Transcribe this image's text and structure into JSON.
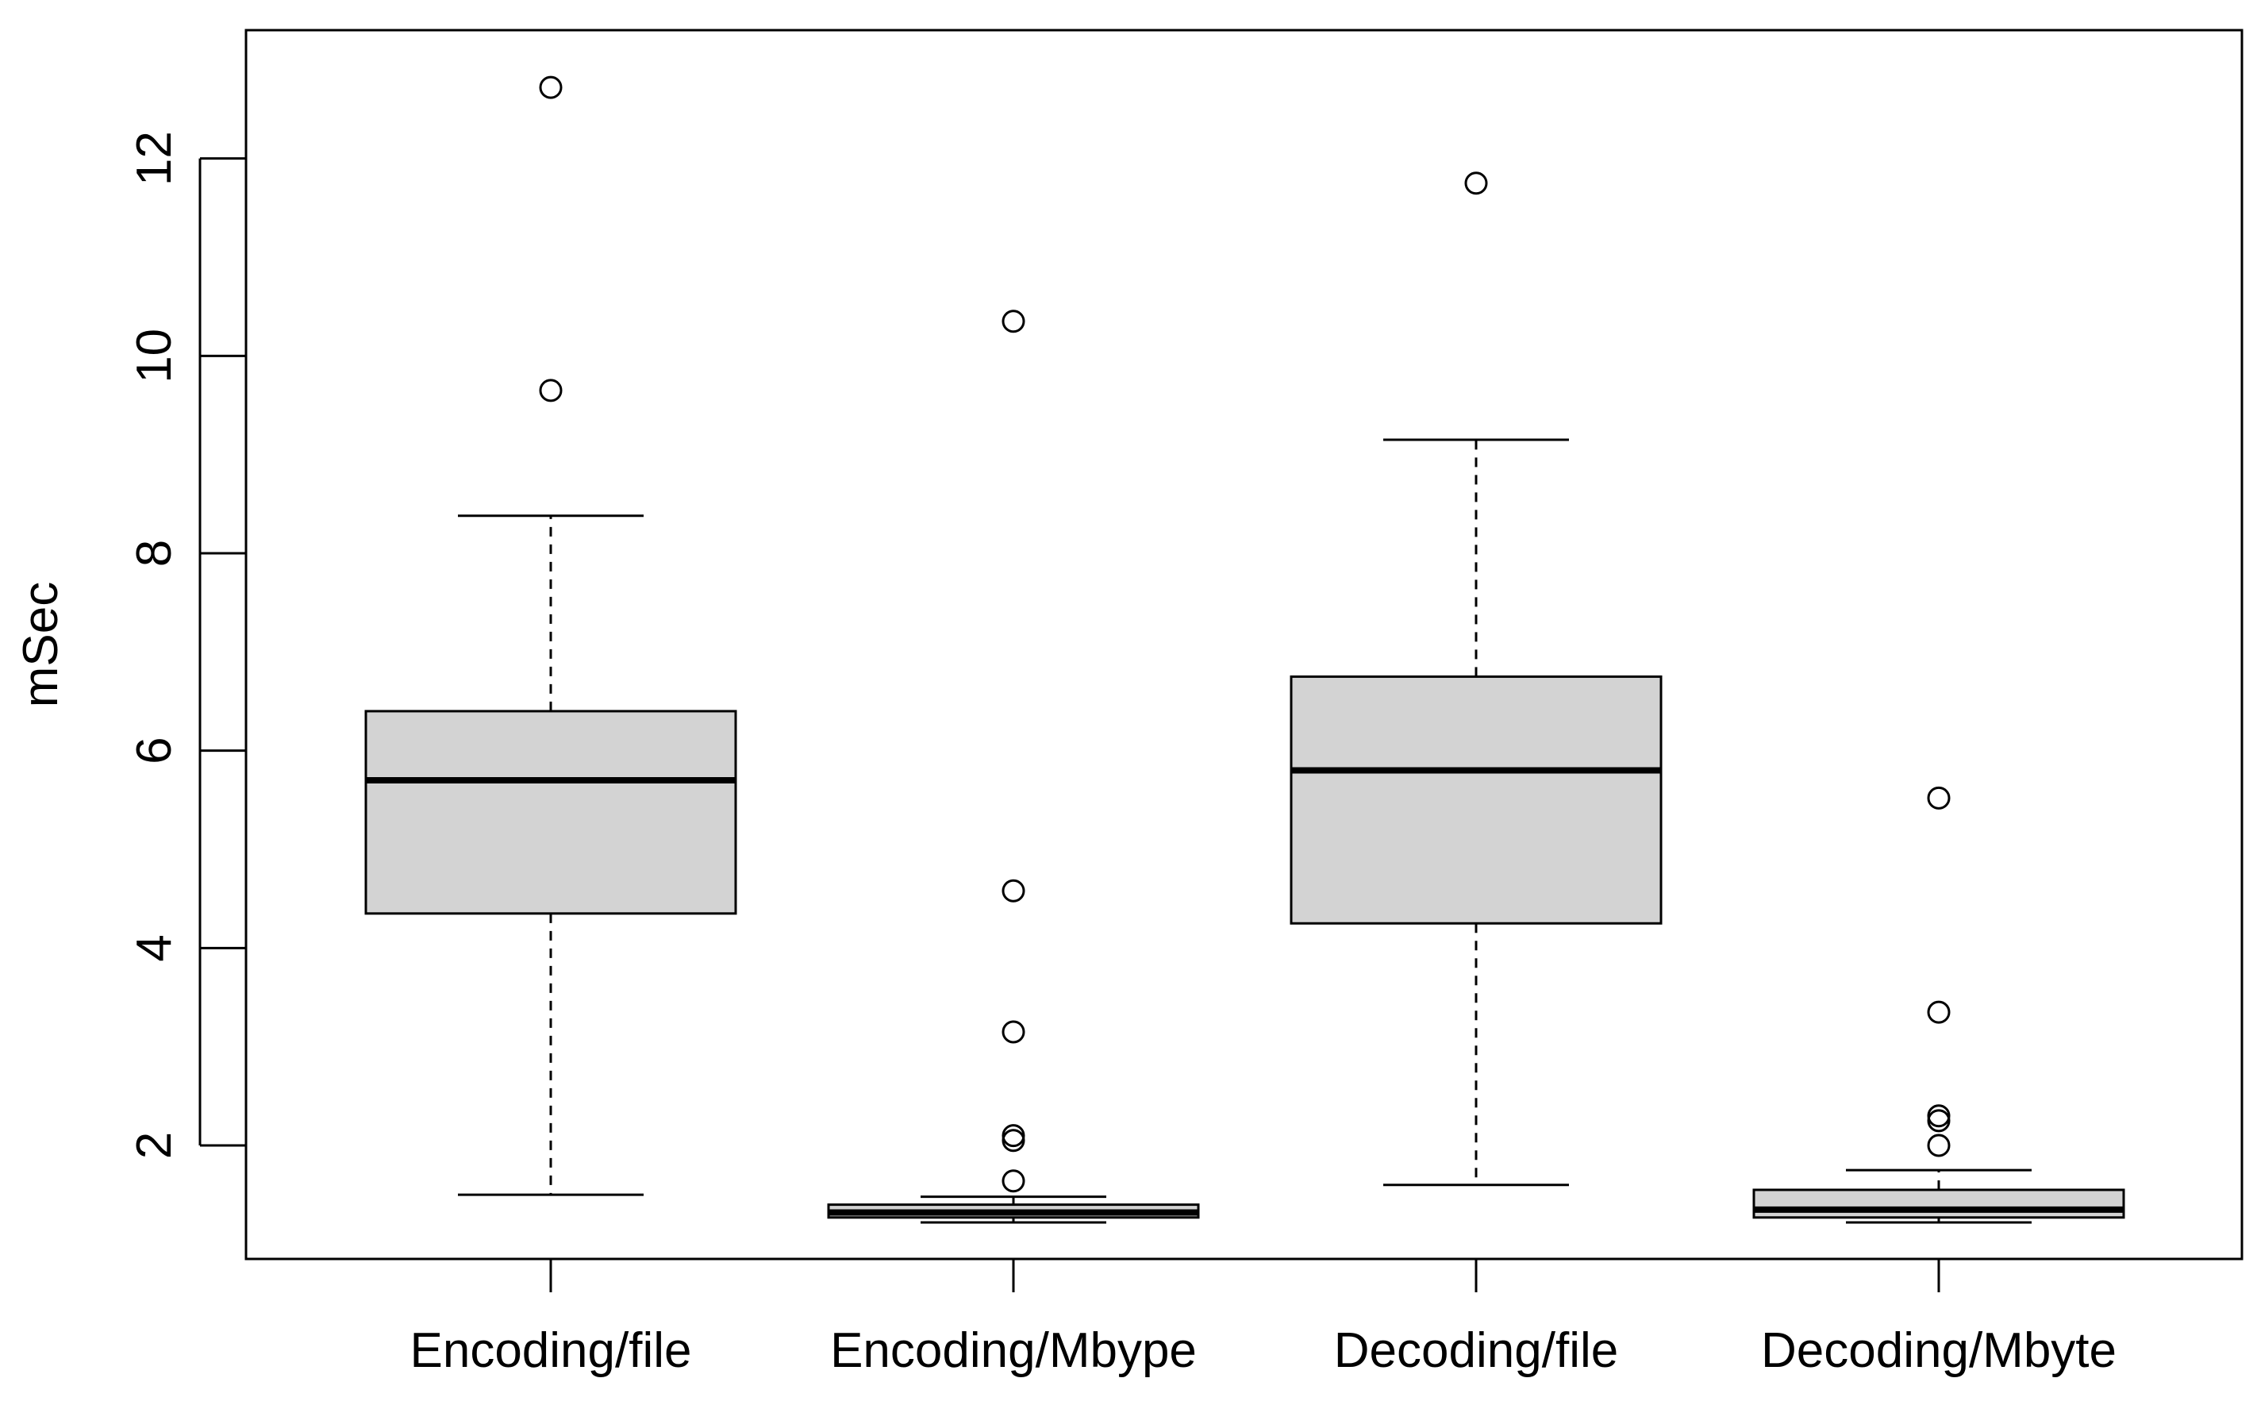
{
  "chart_data": {
    "type": "boxplot",
    "title": "",
    "xlabel": "",
    "ylabel": "mSec",
    "ylim": [
      0.85,
      13.3
    ],
    "yticks": [
      2,
      4,
      6,
      8,
      10,
      12
    ],
    "ytick_labels": [
      "2",
      "4",
      "6",
      "8",
      "10",
      "12"
    ],
    "categories": [
      "Encoding/file",
      "Encoding/Mbype",
      "Decoding/file",
      "Decoding/Mbyte"
    ],
    "box_fill": "#d3d3d3",
    "line_color": "#000000",
    "series": [
      {
        "name": "Encoding/file",
        "whisker_low": 1.5,
        "q1": 4.35,
        "median": 5.7,
        "q3": 6.4,
        "whisker_high": 8.38,
        "outliers": [
          9.65,
          12.72
        ]
      },
      {
        "name": "Encoding/Mbype",
        "whisker_low": 1.22,
        "q1": 1.27,
        "median": 1.32,
        "q3": 1.4,
        "whisker_high": 1.48,
        "outliers": [
          1.64,
          2.05,
          2.1,
          3.15,
          4.58,
          10.35
        ]
      },
      {
        "name": "Decoding/file",
        "whisker_low": 1.6,
        "q1": 4.25,
        "median": 5.8,
        "q3": 6.75,
        "whisker_high": 9.15,
        "outliers": [
          11.75
        ]
      },
      {
        "name": "Decoding/Mbyte",
        "whisker_low": 1.22,
        "q1": 1.27,
        "median": 1.35,
        "q3": 1.55,
        "whisker_high": 1.75,
        "outliers": [
          2.0,
          2.25,
          2.3,
          3.35,
          5.52
        ]
      }
    ]
  }
}
